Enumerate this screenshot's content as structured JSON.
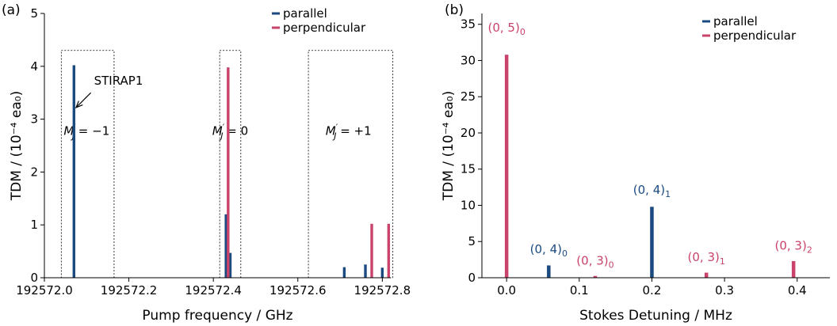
{
  "colors": {
    "parallel": "#1a4a80",
    "perpendicular": "#c9436a",
    "axis": "#000000"
  },
  "legend": {
    "parallel": "parallel",
    "perpendicular": "perpendicular"
  },
  "chart_data": [
    {
      "panel_label": "(a)",
      "type": "bar",
      "xlabel": "Pump frequency / GHz",
      "ylabel": "TDM / (10⁻⁴ ea₀)",
      "xlim": [
        192572.0,
        192572.82
      ],
      "ylim": [
        0,
        5
      ],
      "xticks": [
        192572.0,
        192572.2,
        192572.4,
        192572.6,
        192572.8
      ],
      "xtick_labels": [
        "192572.0",
        "192572.2",
        "192572.4",
        "192572.6",
        "192572.8"
      ],
      "yticks": [
        0,
        1,
        2,
        3,
        4,
        5
      ],
      "ytick_labels": [
        "0",
        "1",
        "2",
        "3",
        "4",
        "5"
      ],
      "legend_position": "top-right",
      "series": [
        {
          "name": "parallel",
          "x": [
            192572.07,
            192572.43,
            192572.44,
            192572.71,
            192572.76,
            192572.8
          ],
          "values": [
            4.02,
            1.2,
            0.47,
            0.2,
            0.25,
            0.19
          ]
        },
        {
          "name": "perpendicular",
          "x": [
            192572.435,
            192572.775,
            192572.815
          ],
          "values": [
            3.98,
            1.02,
            1.02
          ]
        }
      ],
      "boxes": [
        {
          "x0": 192572.04,
          "x1": 192572.165,
          "y0": 0,
          "y1": 4.3,
          "label_main": "M",
          "label_sup": "′",
          "label_sub": "J",
          "label_value": " = −1",
          "label_x": 192572.1,
          "label_y": 2.7
        },
        {
          "x0": 192572.415,
          "x1": 192572.465,
          "y0": 0,
          "y1": 4.3,
          "label_main": "M",
          "label_sup": "′",
          "label_sub": "J",
          "label_value": " = 0",
          "label_x": 192572.44,
          "label_y": 2.7
        },
        {
          "x0": 192572.625,
          "x1": 192572.825,
          "y0": 0,
          "y1": 4.3,
          "label_main": "M",
          "label_sup": "′",
          "label_sub": "J",
          "label_value": " = +1",
          "label_x": 192572.72,
          "label_y": 2.7
        }
      ],
      "arrow_annotation": {
        "text": "STIRAP1",
        "from_x": 192572.11,
        "from_y": 3.5,
        "to_x": 192572.075,
        "to_y": 3.22
      }
    },
    {
      "panel_label": "(b)",
      "type": "bar",
      "xlabel": "Stokes Detuning / MHz",
      "ylabel": "TDM / (10⁻⁴ ea₀)",
      "xlim": [
        -0.034,
        0.445
      ],
      "ylim": [
        0,
        36.5
      ],
      "xticks": [
        0.0,
        0.1,
        0.2,
        0.3,
        0.4
      ],
      "xtick_labels": [
        "0.0",
        "0.1",
        "0.2",
        "0.3",
        "0.4"
      ],
      "yticks": [
        0,
        5,
        10,
        15,
        20,
        25,
        30,
        35
      ],
      "ytick_labels": [
        "0",
        "5",
        "10",
        "15",
        "20",
        "25",
        "30",
        "35"
      ],
      "legend_position": "top-right",
      "series": [
        {
          "name": "parallel",
          "x": [
            0.058,
            0.2
          ],
          "values": [
            1.7,
            9.8
          ]
        },
        {
          "name": "perpendicular",
          "x": [
            0.0,
            0.122,
            0.275,
            0.395
          ],
          "values": [
            30.8,
            0.25,
            0.7,
            2.3
          ]
        }
      ],
      "peak_labels": [
        {
          "x": 0.0,
          "y": 34.0,
          "main": "(0, 5)",
          "sub": "0",
          "series": "perpendicular"
        },
        {
          "x": 0.058,
          "y": 3.4,
          "main": "(0, 4)",
          "sub": "0",
          "series": "parallel"
        },
        {
          "x": 0.122,
          "y": 1.8,
          "main": "(0, 3)",
          "sub": "0",
          "series": "perpendicular"
        },
        {
          "x": 0.2,
          "y": 11.6,
          "main": "(0, 4)",
          "sub": "1",
          "series": "parallel"
        },
        {
          "x": 0.275,
          "y": 2.3,
          "main": "(0, 3)",
          "sub": "1",
          "series": "perpendicular"
        },
        {
          "x": 0.395,
          "y": 3.9,
          "main": "(0, 3)",
          "sub": "2",
          "series": "perpendicular"
        }
      ]
    }
  ]
}
